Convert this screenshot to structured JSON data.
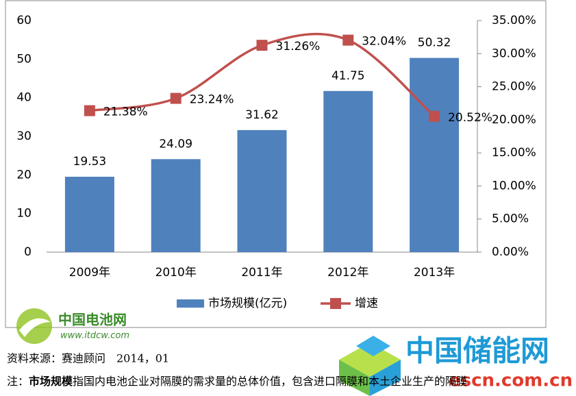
{
  "chart_data": {
    "type": "bar_line",
    "categories": [
      "2009年",
      "2010年",
      "2011年",
      "2012年",
      "2013年"
    ],
    "series": [
      {
        "name": "市场规模(亿元)",
        "type": "bar",
        "color": "#4f81bd",
        "values": [
          19.53,
          24.09,
          31.62,
          41.75,
          50.32
        ]
      },
      {
        "name": "增速",
        "type": "line",
        "axis": "y2",
        "color": "#c0504d",
        "values": [
          21.38,
          23.24,
          31.26,
          32.04,
          20.52
        ],
        "value_labels": [
          "21.38%",
          "23.24%",
          "31.26%",
          "32.04%",
          "20.52%"
        ]
      }
    ],
    "ylim": [
      0,
      60
    ],
    "yticks": [
      0,
      10,
      20,
      30,
      40,
      50,
      60
    ],
    "y2lim": [
      0,
      35
    ],
    "y2ticks": [
      {
        "value": 0,
        "label": "0.00%"
      },
      {
        "value": 5,
        "label": "5.00%"
      },
      {
        "value": 10,
        "label": "10.00%"
      },
      {
        "value": 15,
        "label": "15.00%"
      },
      {
        "value": 20,
        "label": "20.00%"
      },
      {
        "value": 25,
        "label": "25.00%"
      },
      {
        "value": 30,
        "label": "30.00%"
      },
      {
        "value": 35,
        "label": "35.00%"
      }
    ],
    "grid": false,
    "legend": "bottom"
  },
  "logo_left": {
    "name": "中国电池网",
    "url": "www.itdcw.com"
  },
  "logo_right": {
    "name": "中国储能网",
    "url": "escn.com.cn"
  },
  "footer": {
    "source": "资料来源：赛迪顾问　2014，01",
    "note_prefix": "注：",
    "note_term": "市场规模",
    "note_text": "指国内电池企业对隔膜的需求量的总体价值，包含进口隔膜和本土企业生产的隔膜"
  }
}
